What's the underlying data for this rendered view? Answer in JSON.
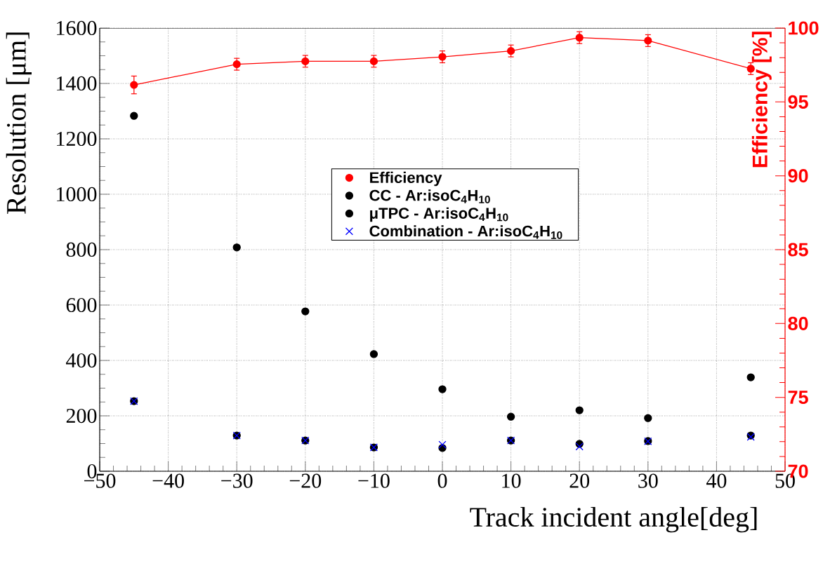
{
  "chart_data": {
    "type": "scatter",
    "xlabel": "Track incident angle[deg]",
    "ylabel": "Resolution [μm]",
    "y2label": "Efficiency [%]",
    "x": [
      -45,
      -30,
      -20,
      -10,
      0,
      10,
      20,
      30,
      45
    ],
    "xlim": [
      -50,
      50
    ],
    "xticks": [
      {
        "value": -50,
        "label": "−50"
      },
      {
        "value": -40,
        "label": "−40"
      },
      {
        "value": -30,
        "label": "−30"
      },
      {
        "value": -20,
        "label": "−20"
      },
      {
        "value": -10,
        "label": "−10"
      },
      0,
      10,
      20,
      30,
      40,
      50
    ],
    "ylim": [
      0,
      1600
    ],
    "yticks": [
      0,
      200,
      400,
      600,
      800,
      1000,
      1200,
      1400,
      1600
    ],
    "y2lim": [
      70,
      100
    ],
    "y2ticks": [
      70,
      75,
      80,
      85,
      90,
      95,
      100
    ],
    "grid": true,
    "legend": "top",
    "series": [
      {
        "name": "Efficiency",
        "type": "line",
        "axis": "y2",
        "color": "#ff0000",
        "marker": "circle",
        "line_style": "solid",
        "values": [
          96.15,
          97.55,
          97.75,
          97.75,
          98.05,
          98.45,
          99.35,
          99.15,
          97.25
        ],
        "errors": [
          0.6,
          0.4,
          0.4,
          0.4,
          0.4,
          0.4,
          0.4,
          0.4,
          0.4
        ]
      },
      {
        "name": "CC - Ar:isoC$_{4}$H$_{10}$",
        "axis": "y",
        "color": "#000000",
        "marker": "circle",
        "values": [
          1283,
          808,
          577,
          423,
          296,
          197,
          99,
          109,
          339
        ]
      },
      {
        "name": "μTPC - Ar:isoC$_{4}$H$_{10}$",
        "axis": "y",
        "color": "#000000",
        "marker": "circle",
        "values": [
          253,
          129,
          111,
          86,
          84,
          111,
          220,
          192,
          129
        ]
      },
      {
        "name": "Combination - Ar:isoC$_{4}$H$_{10}$",
        "axis": "y",
        "color": "#0000ff",
        "marker": "cross",
        "values": [
          253,
          129,
          111,
          86,
          96,
          111,
          89,
          108,
          124
        ]
      }
    ]
  }
}
